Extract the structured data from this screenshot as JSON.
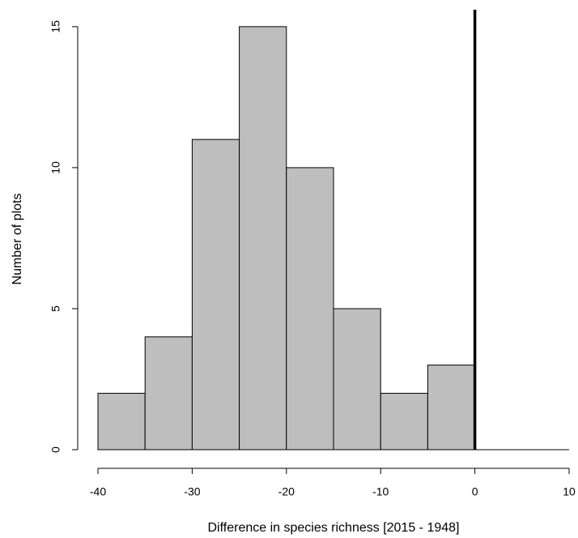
{
  "chart_data": {
    "type": "histogram",
    "xlabel": "Difference in species richness [2015 - 1948]",
    "ylabel": "Number of plots",
    "bins": [
      -40,
      -35,
      -30,
      -25,
      -20,
      -15,
      -10,
      -5,
      0
    ],
    "counts": [
      2,
      4,
      11,
      15,
      10,
      5,
      2,
      3
    ],
    "color": "#bebebe",
    "xlim": [
      -40,
      10
    ],
    "xticks": [
      -40,
      -30,
      -20,
      -10,
      0,
      10
    ],
    "ylim": [
      0,
      15.6
    ],
    "yticks": [
      0,
      5,
      10,
      15
    ],
    "vline": 0
  }
}
